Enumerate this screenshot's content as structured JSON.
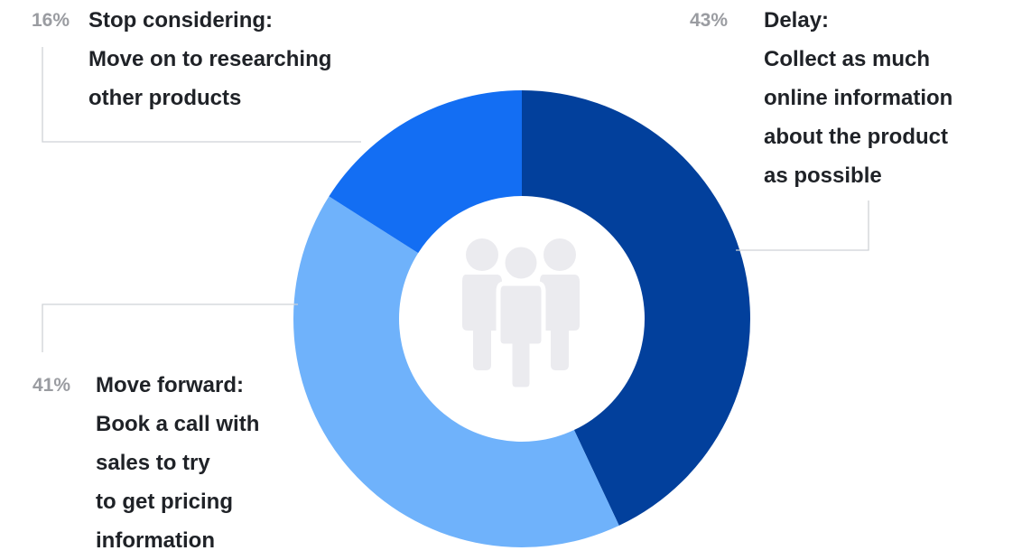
{
  "chart_data": {
    "type": "pie",
    "variant": "donut",
    "slices": [
      {
        "key": "delay",
        "value": 43,
        "percent_label": "43%",
        "title": "Delay:",
        "description_lines": [
          "Collect as much",
          "online information",
          "about the product",
          "as possible"
        ],
        "color": "#02409c"
      },
      {
        "key": "move_forward",
        "value": 41,
        "percent_label": "41%",
        "title": "Move forward:",
        "description_lines": [
          "Book a call with",
          "sales to try",
          "to get pricing",
          "information"
        ],
        "color": "#6fb2fb"
      },
      {
        "key": "stop_considering",
        "value": 16,
        "percent_label": "16%",
        "title": "Stop considering:",
        "description_lines": [
          "Move on to researching",
          "other products"
        ],
        "color": "#136ef3"
      }
    ],
    "center_icon": "people-group-icon",
    "center_icon_color": "#ebebef",
    "leader_line_color": "#cfd2d6"
  }
}
